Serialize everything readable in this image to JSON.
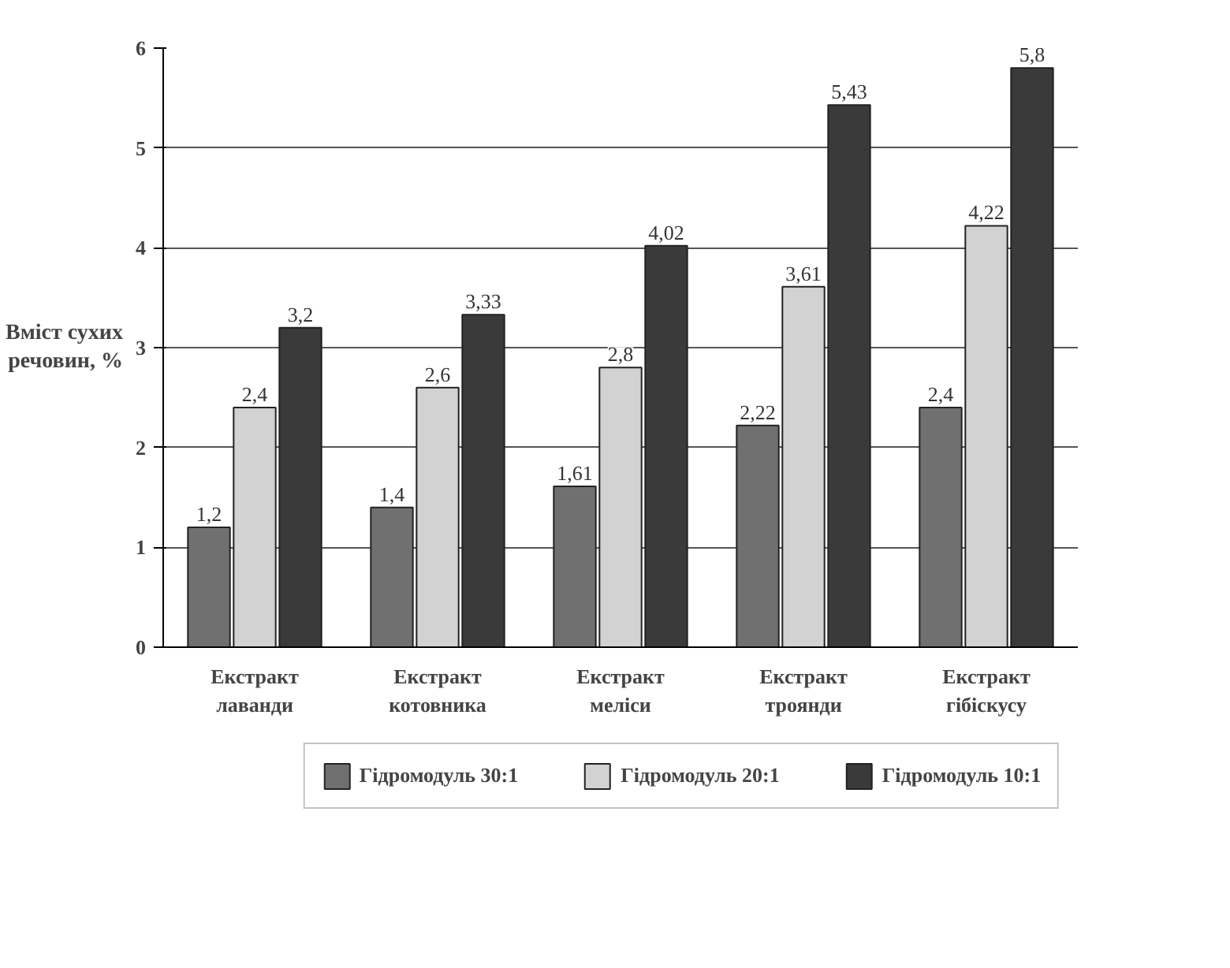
{
  "chart_data": {
    "type": "bar",
    "ylabel": "Вміст сухих\nречовин, %",
    "categories": [
      "Екстракт\nлаванди",
      "Екстракт\nкотовника",
      "Екстракт\nмеліси",
      "Екстракт\nтроянди",
      "Екстракт\nгібіскусу"
    ],
    "series": [
      {
        "name": "Гідромодуль 30:1",
        "color": "#707070",
        "values": [
          1.2,
          1.4,
          1.61,
          2.22,
          2.4
        ],
        "value_labels": [
          "1,2",
          "1,4",
          "1,61",
          "2,22",
          "2,4"
        ]
      },
      {
        "name": "Гідромодуль 20:1",
        "color": "#d2d2d2",
        "values": [
          2.4,
          2.6,
          2.8,
          3.61,
          4.22
        ],
        "value_labels": [
          "2,4",
          "2,6",
          "2,8",
          "3,61",
          "4,22"
        ]
      },
      {
        "name": "Гідромодуль 10:1",
        "color": "#3a3a3a",
        "values": [
          3.2,
          3.33,
          4.02,
          5.43,
          5.8
        ],
        "value_labels": [
          "3,2",
          "3,33",
          "4,02",
          "5,43",
          "5,8"
        ]
      }
    ],
    "ylim": [
      0,
      6
    ],
    "yticks": [
      0,
      1,
      2,
      3,
      4,
      5,
      6
    ],
    "grid": "y",
    "legend": "bottom"
  }
}
